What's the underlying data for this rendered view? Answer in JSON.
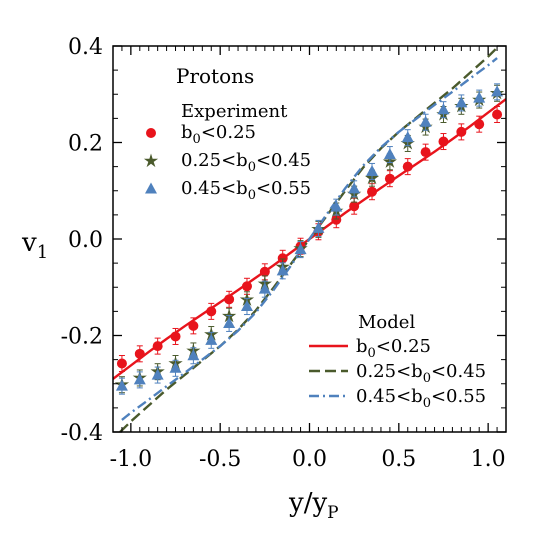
{
  "chart_data": {
    "type": "scatter",
    "title": "",
    "xlabel": "y/y",
    "xlabel_sub": "P",
    "ylabel": "v",
    "ylabel_sub": "1",
    "xlim": [
      -1.1,
      1.1
    ],
    "ylim": [
      -0.4,
      0.4
    ],
    "xticks": [
      -1.0,
      -0.5,
      0.0,
      0.5,
      1.0
    ],
    "xtick_labels": [
      "-1.0",
      "-0.5",
      "0.0",
      "0.5",
      "1.0"
    ],
    "yticks": [
      -0.4,
      -0.2,
      0.0,
      0.2,
      0.4
    ],
    "ytick_labels": [
      "-0.4",
      "-0.2",
      "0.0",
      "0.2",
      "0.4"
    ],
    "grid": false,
    "annotation": "Protons",
    "experiment_legend_title": "Experiment",
    "model_legend_title": "Model",
    "experiment_series": [
      {
        "label_parts": [
          "b",
          "0",
          "<0.25"
        ],
        "marker": "circle",
        "color": "#e8141c",
        "points": [
          [
            -1.05,
            -0.258
          ],
          [
            -0.95,
            -0.238
          ],
          [
            -0.85,
            -0.222
          ],
          [
            -0.75,
            -0.202
          ],
          [
            -0.65,
            -0.18
          ],
          [
            -0.55,
            -0.15
          ],
          [
            -0.45,
            -0.125
          ],
          [
            -0.35,
            -0.098
          ],
          [
            -0.25,
            -0.068
          ],
          [
            -0.15,
            -0.04
          ],
          [
            -0.05,
            -0.015
          ],
          [
            0.05,
            0.015
          ],
          [
            0.15,
            0.04
          ],
          [
            0.25,
            0.068
          ],
          [
            0.35,
            0.098
          ],
          [
            0.45,
            0.125
          ],
          [
            0.55,
            0.15
          ],
          [
            0.65,
            0.18
          ],
          [
            0.75,
            0.202
          ],
          [
            0.85,
            0.222
          ],
          [
            0.95,
            0.238
          ],
          [
            1.05,
            0.258
          ]
        ]
      },
      {
        "label_parts": [
          "0.25<b",
          "0",
          "<0.45"
        ],
        "marker": "star",
        "color": "#4a5a2c",
        "points": [
          [
            -1.05,
            -0.302
          ],
          [
            -0.95,
            -0.288
          ],
          [
            -0.85,
            -0.275
          ],
          [
            -0.75,
            -0.258
          ],
          [
            -0.65,
            -0.232
          ],
          [
            -0.55,
            -0.198
          ],
          [
            -0.45,
            -0.16
          ],
          [
            -0.35,
            -0.126
          ],
          [
            -0.25,
            -0.093
          ],
          [
            -0.15,
            -0.058
          ],
          [
            -0.05,
            -0.02
          ],
          [
            0.05,
            0.02
          ],
          [
            0.15,
            0.058
          ],
          [
            0.25,
            0.093
          ],
          [
            0.35,
            0.126
          ],
          [
            0.45,
            0.16
          ],
          [
            0.55,
            0.198
          ],
          [
            0.65,
            0.232
          ],
          [
            0.75,
            0.258
          ],
          [
            0.85,
            0.275
          ],
          [
            0.95,
            0.288
          ],
          [
            1.05,
            0.302
          ]
        ]
      },
      {
        "label_parts": [
          "0.45<b",
          "0",
          "<0.55"
        ],
        "marker": "triangle",
        "color": "#4f81bd",
        "points": [
          [
            -1.05,
            -0.305
          ],
          [
            -0.95,
            -0.292
          ],
          [
            -0.85,
            -0.282
          ],
          [
            -0.75,
            -0.268
          ],
          [
            -0.65,
            -0.242
          ],
          [
            -0.55,
            -0.21
          ],
          [
            -0.45,
            -0.175
          ],
          [
            -0.35,
            -0.14
          ],
          [
            -0.25,
            -0.104
          ],
          [
            -0.15,
            -0.066
          ],
          [
            -0.05,
            -0.022
          ],
          [
            0.05,
            0.022
          ],
          [
            0.15,
            0.066
          ],
          [
            0.25,
            0.104
          ],
          [
            0.35,
            0.14
          ],
          [
            0.45,
            0.175
          ],
          [
            0.55,
            0.21
          ],
          [
            0.65,
            0.242
          ],
          [
            0.75,
            0.268
          ],
          [
            0.85,
            0.282
          ],
          [
            0.95,
            0.292
          ],
          [
            1.05,
            0.305
          ]
        ]
      }
    ],
    "model_series": [
      {
        "label_parts": [
          "b",
          "0",
          "<0.25"
        ],
        "color": "#e8141c",
        "dash": "solid",
        "points": [
          [
            -1.1,
            -0.29
          ],
          [
            -1.0,
            -0.262
          ],
          [
            -0.9,
            -0.234
          ],
          [
            -0.8,
            -0.207
          ],
          [
            -0.7,
            -0.181
          ],
          [
            -0.6,
            -0.156
          ],
          [
            -0.5,
            -0.131
          ],
          [
            -0.4,
            -0.106
          ],
          [
            -0.3,
            -0.08
          ],
          [
            -0.2,
            -0.054
          ],
          [
            -0.1,
            -0.027
          ],
          [
            0.0,
            0.0
          ],
          [
            0.1,
            0.027
          ],
          [
            0.2,
            0.054
          ],
          [
            0.3,
            0.08
          ],
          [
            0.4,
            0.106
          ],
          [
            0.5,
            0.131
          ],
          [
            0.6,
            0.156
          ],
          [
            0.7,
            0.181
          ],
          [
            0.8,
            0.207
          ],
          [
            0.9,
            0.234
          ],
          [
            1.0,
            0.262
          ],
          [
            1.1,
            0.29
          ]
        ]
      },
      {
        "label_parts": [
          "0.25<b",
          "0",
          "<0.45"
        ],
        "color": "#4a5a2c",
        "dash": "dashed",
        "points": [
          [
            -1.06,
            -0.4
          ],
          [
            -1.0,
            -0.378
          ],
          [
            -0.9,
            -0.345
          ],
          [
            -0.8,
            -0.312
          ],
          [
            -0.7,
            -0.282
          ],
          [
            -0.6,
            -0.252
          ],
          [
            -0.5,
            -0.222
          ],
          [
            -0.4,
            -0.188
          ],
          [
            -0.3,
            -0.148
          ],
          [
            -0.2,
            -0.1
          ],
          [
            -0.1,
            -0.05
          ],
          [
            0.0,
            0.0
          ],
          [
            0.1,
            0.05
          ],
          [
            0.2,
            0.1
          ],
          [
            0.3,
            0.148
          ],
          [
            0.4,
            0.188
          ],
          [
            0.5,
            0.222
          ],
          [
            0.6,
            0.252
          ],
          [
            0.7,
            0.282
          ],
          [
            0.8,
            0.312
          ],
          [
            0.9,
            0.345
          ],
          [
            1.0,
            0.378
          ],
          [
            1.06,
            0.4
          ]
        ]
      },
      {
        "label_parts": [
          "0.45<b",
          "0",
          "<0.55"
        ],
        "color": "#4f81bd",
        "dash": "dashdot",
        "points": [
          [
            -1.05,
            -0.375
          ],
          [
            -1.0,
            -0.36
          ],
          [
            -0.9,
            -0.333
          ],
          [
            -0.8,
            -0.305
          ],
          [
            -0.7,
            -0.278
          ],
          [
            -0.6,
            -0.25
          ],
          [
            -0.5,
            -0.222
          ],
          [
            -0.4,
            -0.19
          ],
          [
            -0.3,
            -0.152
          ],
          [
            -0.2,
            -0.105
          ],
          [
            -0.1,
            -0.053
          ],
          [
            0.0,
            0.0
          ],
          [
            0.1,
            0.053
          ],
          [
            0.2,
            0.105
          ],
          [
            0.3,
            0.152
          ],
          [
            0.4,
            0.19
          ],
          [
            0.5,
            0.222
          ],
          [
            0.6,
            0.25
          ],
          [
            0.7,
            0.278
          ],
          [
            0.8,
            0.305
          ],
          [
            0.9,
            0.333
          ],
          [
            1.0,
            0.36
          ],
          [
            1.05,
            0.375
          ]
        ]
      }
    ]
  }
}
